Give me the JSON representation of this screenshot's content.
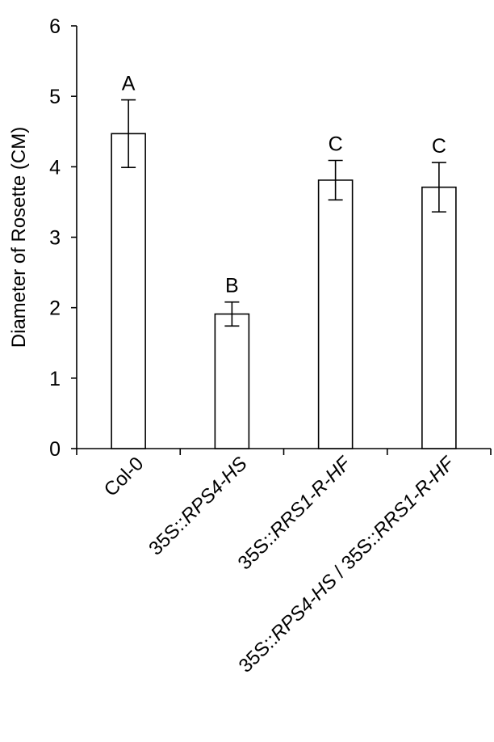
{
  "chart_data": {
    "type": "bar",
    "title": "",
    "xlabel": "",
    "ylabel": "Diameter of Rosette (CM)",
    "ylim": [
      0,
      6
    ],
    "yticks": [
      0,
      1,
      2,
      3,
      4,
      5,
      6
    ],
    "grid": false,
    "categories": [
      {
        "plain": "Col-0",
        "parts": [
          {
            "text": "Col-0",
            "italic": false
          }
        ]
      },
      {
        "plain": "35S::RPS4-HS",
        "parts": [
          {
            "text": "35S::",
            "italic": false
          },
          {
            "text": "RPS4-HS",
            "italic": true
          }
        ]
      },
      {
        "plain": "35S::RRS1-R-HF",
        "parts": [
          {
            "text": "35S::",
            "italic": false
          },
          {
            "text": "RRS1-R-HF",
            "italic": true
          }
        ]
      },
      {
        "plain": "35S::RPS4-HS / 35S::RRS1-R-HF",
        "parts": [
          {
            "text": "35S::",
            "italic": false
          },
          {
            "text": "RPS4-HS",
            "italic": true
          },
          {
            "text": " / 35S::",
            "italic": false
          },
          {
            "text": "RRS1-R-HF",
            "italic": true
          }
        ]
      }
    ],
    "values": [
      4.47,
      1.91,
      3.81,
      3.71
    ],
    "errors": [
      0.48,
      0.17,
      0.28,
      0.35
    ],
    "significance_letters": [
      "A",
      "B",
      "C",
      "C"
    ]
  }
}
